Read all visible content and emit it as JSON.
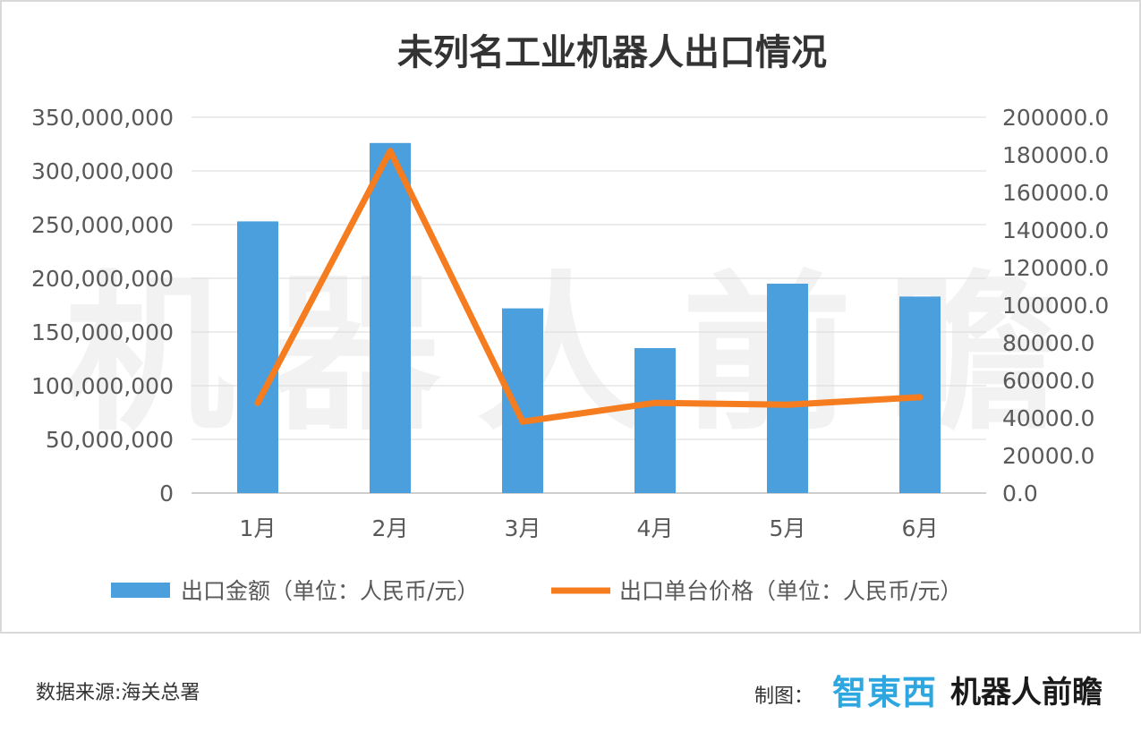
{
  "chart_data": {
    "type": "bar",
    "title": "未列名工业机器人出口情况",
    "categories": [
      "1月",
      "2月",
      "3月",
      "4月",
      "5月",
      "6月"
    ],
    "series": [
      {
        "name": "出口金额（单位：人民币/元）",
        "type": "bar",
        "axis": "left",
        "color": "#4a9fdc",
        "values": [
          253000000,
          326000000,
          172000000,
          135000000,
          195000000,
          183000000
        ]
      },
      {
        "name": "出口单台价格（单位：人民币/元）",
        "type": "line",
        "axis": "right",
        "color": "#f57c1f",
        "values": [
          48000,
          182000,
          38000,
          48000,
          47000,
          51000
        ]
      }
    ],
    "y_left": {
      "min": 0,
      "max": 350000000,
      "ticks": [
        0,
        50000000,
        100000000,
        150000000,
        200000000,
        250000000,
        300000000,
        350000000
      ],
      "tick_labels": [
        "0",
        "50,000,000",
        "100,000,000",
        "150,000,000",
        "200,000,000",
        "250,000,000",
        "300,000,000",
        "350,000,000"
      ]
    },
    "y_right": {
      "min": 0,
      "max": 200000,
      "ticks": [
        0,
        20000,
        40000,
        60000,
        80000,
        100000,
        120000,
        140000,
        160000,
        180000,
        200000
      ],
      "tick_labels": [
        "0.0",
        "20000.0",
        "40000.0",
        "60000.0",
        "80000.0",
        "100000.0",
        "120000.0",
        "140000.0",
        "160000.0",
        "180000.0",
        "200000.0"
      ]
    },
    "grid": true,
    "legend_position": "bottom"
  },
  "watermark": "机器人前瞻",
  "footer": {
    "source": "数据来源:海关总署",
    "credit_label": "制图：",
    "brand_zhidx": "智東西",
    "brand_jqr": "机器人前瞻"
  }
}
